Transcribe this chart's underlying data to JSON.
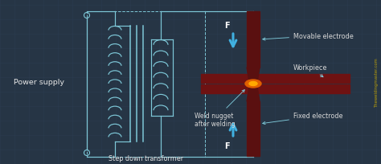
{
  "bg_color": "#263545",
  "grid_color": "#2e4055",
  "line_color": "#7ec8d8",
  "text_color": "#e8e8e8",
  "label_color": "#d8d8d8",
  "electrode_color": "#5a1010",
  "workpiece_color": "#6e1212",
  "arrow_color": "#40b0e0",
  "title": "Power supply",
  "transformer_label": "Step down transformer",
  "movable_electrode": "Movable electrode",
  "fixed_electrode": "Fixed electrode",
  "workpiece_label": "Workpiece",
  "weld_label": "Weld nugget\nafter welding",
  "watermark": "Theweldingmaster.com",
  "F_label": "F"
}
